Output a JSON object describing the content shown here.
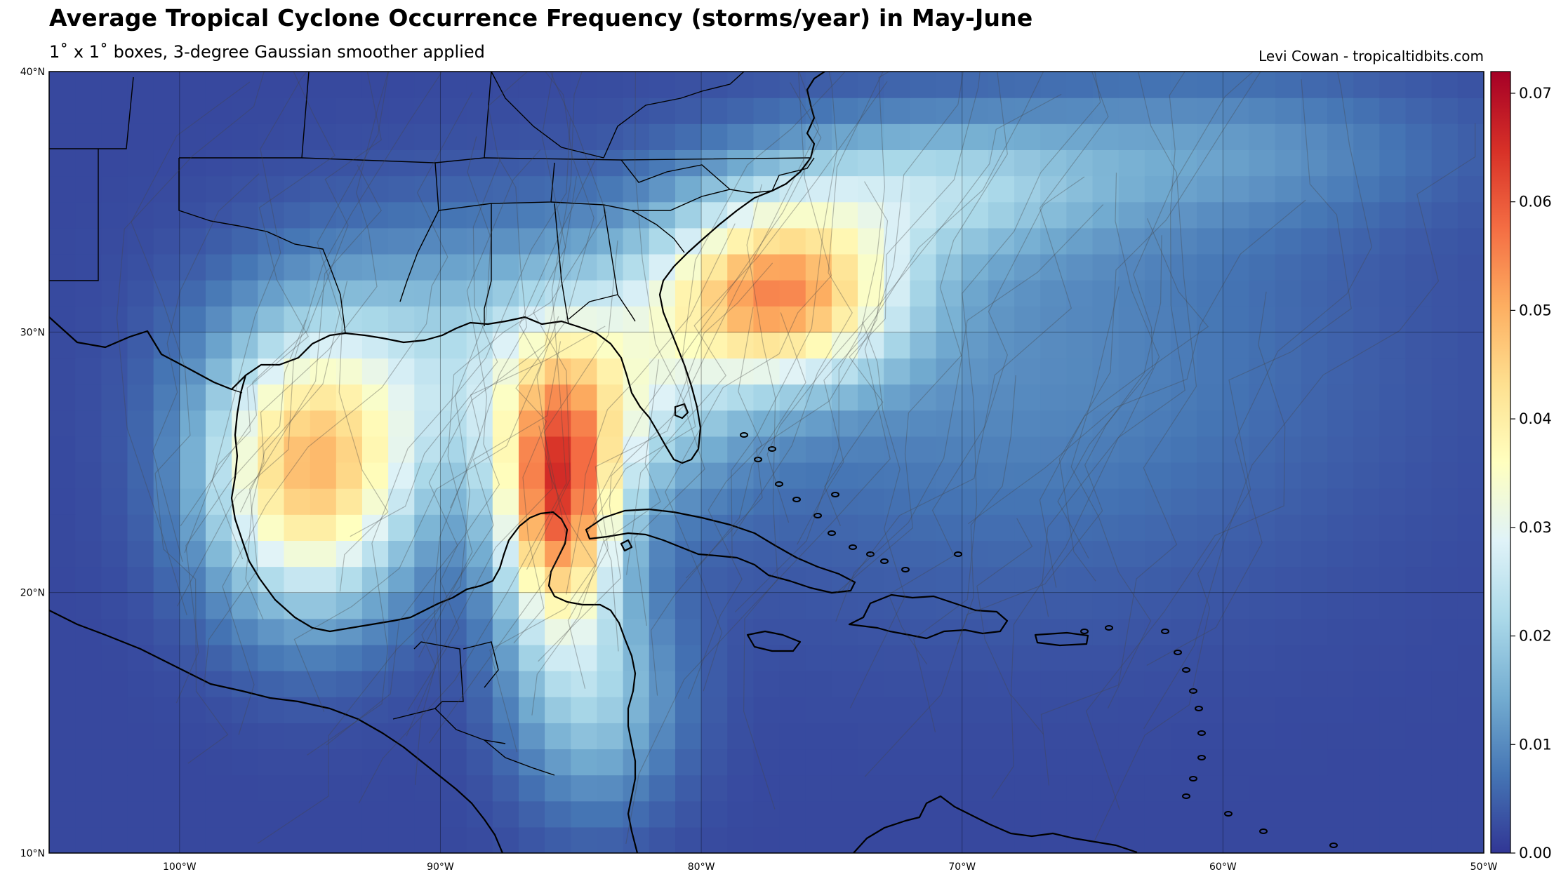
{
  "title": "Average Tropical Cyclone Occurrence Frequency (storms/year) in May-June",
  "subtitle": "1˚ x 1˚  boxes, 3-degree Gaussian smoother applied",
  "credit": "Levi Cowan - tropicaltidbits.com",
  "map": {
    "lon_range": [
      -105,
      -50
    ],
    "lat_range": [
      10,
      40
    ],
    "lat_ticks": [
      {
        "value": 40,
        "label": "40°N"
      },
      {
        "value": 30,
        "label": "30°N"
      },
      {
        "value": 20,
        "label": "20°N"
      },
      {
        "value": 10,
        "label": "10°N"
      }
    ],
    "lon_ticks": [
      {
        "value": -100,
        "label": "100°W"
      },
      {
        "value": -90,
        "label": "90°W"
      },
      {
        "value": -80,
        "label": "80°W"
      },
      {
        "value": -70,
        "label": "70°W"
      },
      {
        "value": -60,
        "label": "60°W"
      },
      {
        "value": -50,
        "label": "50°W"
      }
    ],
    "gridlines": true,
    "hotspots": [
      {
        "lon": -85.5,
        "lat": 23.5,
        "amp": 0.052,
        "slon": 1.6,
        "slat": 3.6
      },
      {
        "lon": -77.0,
        "lat": 31.5,
        "amp": 0.046,
        "slon": 3.2,
        "slat": 2.3
      },
      {
        "lon": -95.0,
        "lat": 24.5,
        "amp": 0.043,
        "slon": 2.8,
        "slat": 3.6
      },
      {
        "lon": -89.0,
        "lat": 29.0,
        "amp": 0.016,
        "slon": 5.5,
        "slat": 3.5
      },
      {
        "lon": -83.0,
        "lat": 27.5,
        "amp": 0.015,
        "slon": 3.0,
        "slat": 3.0
      },
      {
        "lon": -72.0,
        "lat": 35.5,
        "amp": 0.016,
        "slon": 5.0,
        "slat": 1.8
      },
      {
        "lon": -84.0,
        "lat": 16.0,
        "amp": 0.016,
        "slon": 2.2,
        "slat": 3.0
      },
      {
        "lon": -68.0,
        "lat": 29.0,
        "amp": 0.008,
        "slon": 9.0,
        "slat": 6.0
      },
      {
        "lon": -60.0,
        "lat": 37.0,
        "amp": 0.008,
        "slon": 6.0,
        "slat": 2.0
      }
    ]
  },
  "colorbar": {
    "colormap": "RdYlBu_r",
    "min": 0.0,
    "max": 0.072,
    "ticks": [
      {
        "value": 0.0,
        "label": "0.00"
      },
      {
        "value": 0.01,
        "label": "0.01"
      },
      {
        "value": 0.02,
        "label": "0.02"
      },
      {
        "value": 0.03,
        "label": "0.03"
      },
      {
        "value": 0.04,
        "label": "0.04"
      },
      {
        "value": 0.05,
        "label": "0.05"
      },
      {
        "value": 0.06,
        "label": "0.06"
      },
      {
        "value": 0.07,
        "label": "0.07"
      }
    ]
  }
}
